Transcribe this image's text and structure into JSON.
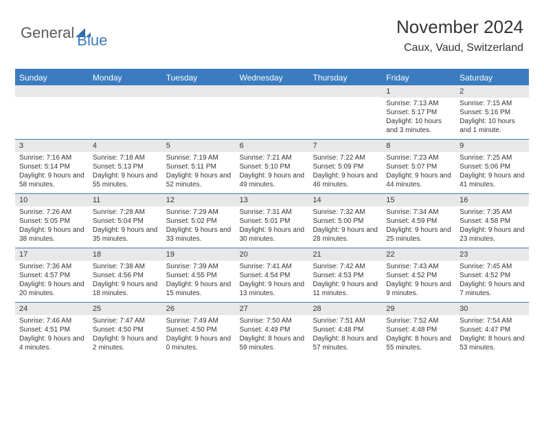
{
  "logo": {
    "part1": "General",
    "part2": "Blue"
  },
  "title": "November 2024",
  "location": "Caux, Vaud, Switzerland",
  "colors": {
    "brand_blue": "#3b7bbf",
    "header_bg": "#3b7bbf",
    "header_text": "#ffffff",
    "daynum_bg": "#e8e8e8",
    "text": "#333333",
    "border": "#3b7bbf",
    "background": "#ffffff"
  },
  "day_names": [
    "Sunday",
    "Monday",
    "Tuesday",
    "Wednesday",
    "Thursday",
    "Friday",
    "Saturday"
  ],
  "weeks": [
    [
      {
        "empty": true
      },
      {
        "empty": true
      },
      {
        "empty": true
      },
      {
        "empty": true
      },
      {
        "empty": true
      },
      {
        "num": "1",
        "sunrise": "Sunrise: 7:13 AM",
        "sunset": "Sunset: 5:17 PM",
        "daylight": "Daylight: 10 hours and 3 minutes."
      },
      {
        "num": "2",
        "sunrise": "Sunrise: 7:15 AM",
        "sunset": "Sunset: 5:16 PM",
        "daylight": "Daylight: 10 hours and 1 minute."
      }
    ],
    [
      {
        "num": "3",
        "sunrise": "Sunrise: 7:16 AM",
        "sunset": "Sunset: 5:14 PM",
        "daylight": "Daylight: 9 hours and 58 minutes."
      },
      {
        "num": "4",
        "sunrise": "Sunrise: 7:18 AM",
        "sunset": "Sunset: 5:13 PM",
        "daylight": "Daylight: 9 hours and 55 minutes."
      },
      {
        "num": "5",
        "sunrise": "Sunrise: 7:19 AM",
        "sunset": "Sunset: 5:11 PM",
        "daylight": "Daylight: 9 hours and 52 minutes."
      },
      {
        "num": "6",
        "sunrise": "Sunrise: 7:21 AM",
        "sunset": "Sunset: 5:10 PM",
        "daylight": "Daylight: 9 hours and 49 minutes."
      },
      {
        "num": "7",
        "sunrise": "Sunrise: 7:22 AM",
        "sunset": "Sunset: 5:09 PM",
        "daylight": "Daylight: 9 hours and 46 minutes."
      },
      {
        "num": "8",
        "sunrise": "Sunrise: 7:23 AM",
        "sunset": "Sunset: 5:07 PM",
        "daylight": "Daylight: 9 hours and 44 minutes."
      },
      {
        "num": "9",
        "sunrise": "Sunrise: 7:25 AM",
        "sunset": "Sunset: 5:06 PM",
        "daylight": "Daylight: 9 hours and 41 minutes."
      }
    ],
    [
      {
        "num": "10",
        "sunrise": "Sunrise: 7:26 AM",
        "sunset": "Sunset: 5:05 PM",
        "daylight": "Daylight: 9 hours and 38 minutes."
      },
      {
        "num": "11",
        "sunrise": "Sunrise: 7:28 AM",
        "sunset": "Sunset: 5:04 PM",
        "daylight": "Daylight: 9 hours and 35 minutes."
      },
      {
        "num": "12",
        "sunrise": "Sunrise: 7:29 AM",
        "sunset": "Sunset: 5:02 PM",
        "daylight": "Daylight: 9 hours and 33 minutes."
      },
      {
        "num": "13",
        "sunrise": "Sunrise: 7:31 AM",
        "sunset": "Sunset: 5:01 PM",
        "daylight": "Daylight: 9 hours and 30 minutes."
      },
      {
        "num": "14",
        "sunrise": "Sunrise: 7:32 AM",
        "sunset": "Sunset: 5:00 PM",
        "daylight": "Daylight: 9 hours and 28 minutes."
      },
      {
        "num": "15",
        "sunrise": "Sunrise: 7:34 AM",
        "sunset": "Sunset: 4:59 PM",
        "daylight": "Daylight: 9 hours and 25 minutes."
      },
      {
        "num": "16",
        "sunrise": "Sunrise: 7:35 AM",
        "sunset": "Sunset: 4:58 PM",
        "daylight": "Daylight: 9 hours and 23 minutes."
      }
    ],
    [
      {
        "num": "17",
        "sunrise": "Sunrise: 7:36 AM",
        "sunset": "Sunset: 4:57 PM",
        "daylight": "Daylight: 9 hours and 20 minutes."
      },
      {
        "num": "18",
        "sunrise": "Sunrise: 7:38 AM",
        "sunset": "Sunset: 4:56 PM",
        "daylight": "Daylight: 9 hours and 18 minutes."
      },
      {
        "num": "19",
        "sunrise": "Sunrise: 7:39 AM",
        "sunset": "Sunset: 4:55 PM",
        "daylight": "Daylight: 9 hours and 15 minutes."
      },
      {
        "num": "20",
        "sunrise": "Sunrise: 7:41 AM",
        "sunset": "Sunset: 4:54 PM",
        "daylight": "Daylight: 9 hours and 13 minutes."
      },
      {
        "num": "21",
        "sunrise": "Sunrise: 7:42 AM",
        "sunset": "Sunset: 4:53 PM",
        "daylight": "Daylight: 9 hours and 11 minutes."
      },
      {
        "num": "22",
        "sunrise": "Sunrise: 7:43 AM",
        "sunset": "Sunset: 4:52 PM",
        "daylight": "Daylight: 9 hours and 9 minutes."
      },
      {
        "num": "23",
        "sunrise": "Sunrise: 7:45 AM",
        "sunset": "Sunset: 4:52 PM",
        "daylight": "Daylight: 9 hours and 7 minutes."
      }
    ],
    [
      {
        "num": "24",
        "sunrise": "Sunrise: 7:46 AM",
        "sunset": "Sunset: 4:51 PM",
        "daylight": "Daylight: 9 hours and 4 minutes."
      },
      {
        "num": "25",
        "sunrise": "Sunrise: 7:47 AM",
        "sunset": "Sunset: 4:50 PM",
        "daylight": "Daylight: 9 hours and 2 minutes."
      },
      {
        "num": "26",
        "sunrise": "Sunrise: 7:49 AM",
        "sunset": "Sunset: 4:50 PM",
        "daylight": "Daylight: 9 hours and 0 minutes."
      },
      {
        "num": "27",
        "sunrise": "Sunrise: 7:50 AM",
        "sunset": "Sunset: 4:49 PM",
        "daylight": "Daylight: 8 hours and 59 minutes."
      },
      {
        "num": "28",
        "sunrise": "Sunrise: 7:51 AM",
        "sunset": "Sunset: 4:48 PM",
        "daylight": "Daylight: 8 hours and 57 minutes."
      },
      {
        "num": "29",
        "sunrise": "Sunrise: 7:52 AM",
        "sunset": "Sunset: 4:48 PM",
        "daylight": "Daylight: 8 hours and 55 minutes."
      },
      {
        "num": "30",
        "sunrise": "Sunrise: 7:54 AM",
        "sunset": "Sunset: 4:47 PM",
        "daylight": "Daylight: 8 hours and 53 minutes."
      }
    ]
  ]
}
